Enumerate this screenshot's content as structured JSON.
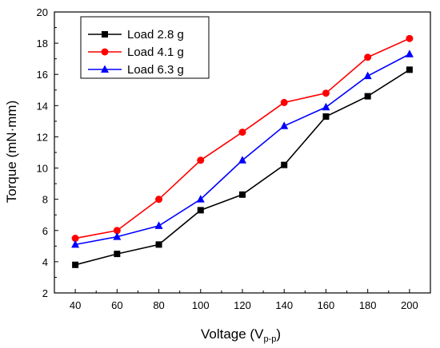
{
  "chart_data": {
    "type": "line",
    "title": "",
    "xlabel": "Voltage (V",
    "xlabel_sub": "p-p",
    "xlabel_close": ")",
    "ylabel": "Torque (mN·mm)",
    "x": [
      40,
      60,
      80,
      100,
      120,
      140,
      160,
      180,
      200
    ],
    "xlim": [
      30,
      210
    ],
    "ylim": [
      2,
      20
    ],
    "xticks": [
      40,
      60,
      80,
      100,
      120,
      140,
      160,
      180,
      200
    ],
    "yticks": [
      2,
      4,
      6,
      8,
      10,
      12,
      14,
      16,
      18,
      20
    ],
    "grid": false,
    "legend_position": "top-left",
    "series": [
      {
        "name": "Load 2.8 g",
        "color": "#000000",
        "marker": "square",
        "values": [
          3.8,
          4.5,
          5.1,
          7.3,
          8.3,
          10.2,
          13.3,
          14.6,
          16.3
        ]
      },
      {
        "name": "Load 4.1 g",
        "color": "#ff0000",
        "marker": "circle",
        "values": [
          5.5,
          6.0,
          8.0,
          10.5,
          12.3,
          14.2,
          14.8,
          17.1,
          18.3
        ]
      },
      {
        "name": "Load 6.3 g",
        "color": "#0000ff",
        "marker": "triangle",
        "values": [
          5.1,
          5.6,
          6.3,
          8.0,
          10.5,
          12.7,
          13.9,
          15.9,
          17.3
        ]
      }
    ]
  }
}
